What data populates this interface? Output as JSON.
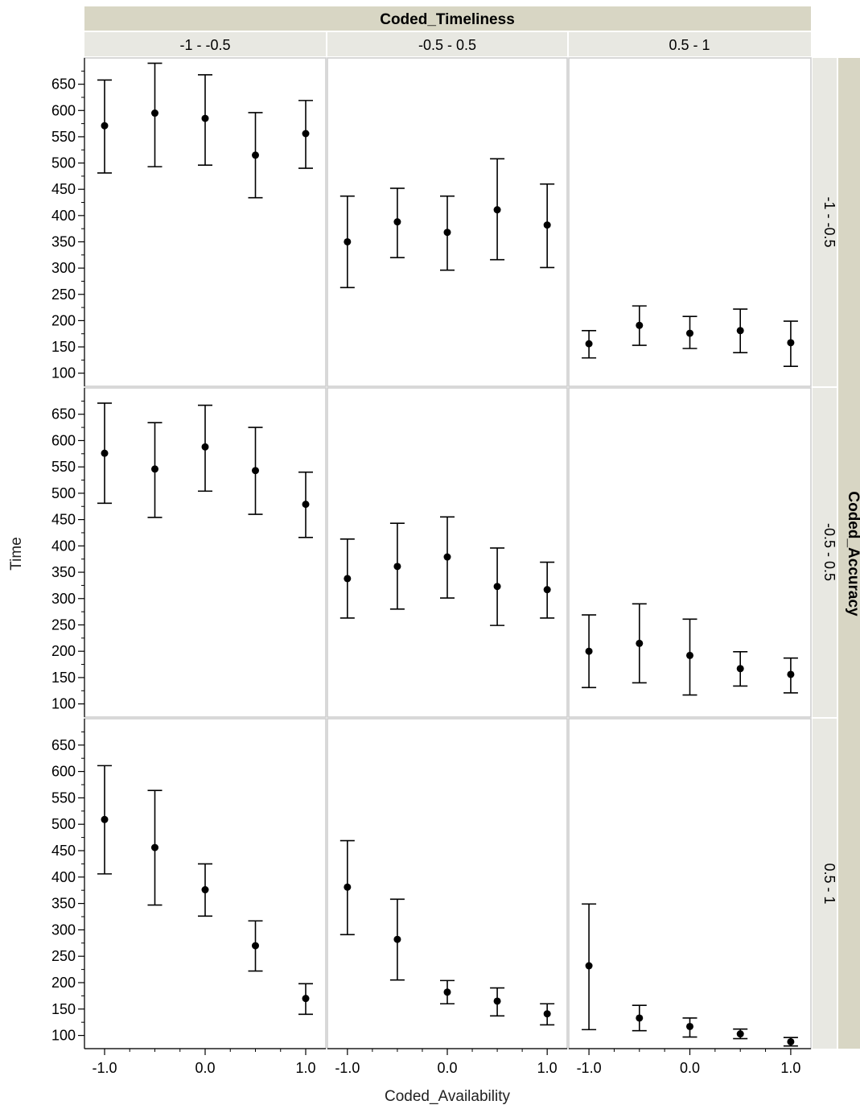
{
  "chart_data": {
    "type": "scatter",
    "style": "point-with-error-bars",
    "facet_col_title": "Coded_Timeliness",
    "facet_row_title": "Coded_Accuracy",
    "col_labels": [
      "-1 - -0.5",
      "-0.5 - 0.5",
      "0.5 - 1"
    ],
    "row_labels": [
      "-1 - -0.5",
      "-0.5 - 0.5",
      "0.5 - 1"
    ],
    "xlabel": "Coded_Availability",
    "ylabel": "Time",
    "x_values": [
      -1.0,
      -0.5,
      0.0,
      0.5,
      1.0
    ],
    "x_tick_labels": [
      "-1.0",
      "0.0",
      "1.0"
    ],
    "x_tick_values": [
      -1.0,
      0.0,
      1.0
    ],
    "xlim": [
      -1.2,
      1.2
    ],
    "ylim": [
      75,
      700
    ],
    "y_tick_labels": [
      "100",
      "150",
      "200",
      "250",
      "300",
      "350",
      "400",
      "450",
      "500",
      "550",
      "600",
      "650"
    ],
    "grid": false,
    "colors": {
      "strip_bg": "#e8e8e2",
      "outer_strip_bg": "#d8d6c4",
      "panel_border": "#cccccc",
      "point": "#000000"
    },
    "panels": [
      {
        "row": 0,
        "col": 0,
        "mean": [
          571,
          595,
          585,
          515,
          556
        ],
        "lower": [
          481,
          493,
          496,
          434,
          490
        ],
        "upper": [
          658,
          690,
          668,
          596,
          619
        ]
      },
      {
        "row": 0,
        "col": 1,
        "mean": [
          350,
          388,
          368,
          411,
          382
        ],
        "lower": [
          263,
          320,
          296,
          316,
          301
        ],
        "upper": [
          437,
          452,
          437,
          508,
          460
        ]
      },
      {
        "row": 0,
        "col": 2,
        "mean": [
          156,
          191,
          176,
          181,
          158
        ],
        "lower": [
          129,
          153,
          147,
          139,
          113
        ],
        "upper": [
          181,
          228,
          208,
          222,
          199
        ]
      },
      {
        "row": 1,
        "col": 0,
        "mean": [
          576,
          546,
          588,
          543,
          479
        ],
        "lower": [
          481,
          454,
          504,
          460,
          416
        ],
        "upper": [
          671,
          634,
          667,
          625,
          540
        ]
      },
      {
        "row": 1,
        "col": 1,
        "mean": [
          338,
          361,
          379,
          323,
          317
        ],
        "lower": [
          263,
          280,
          301,
          249,
          263
        ],
        "upper": [
          413,
          443,
          455,
          396,
          369
        ]
      },
      {
        "row": 1,
        "col": 2,
        "mean": [
          200,
          215,
          192,
          167,
          156
        ],
        "lower": [
          131,
          140,
          117,
          134,
          121
        ],
        "upper": [
          269,
          290,
          261,
          199,
          187
        ]
      },
      {
        "row": 2,
        "col": 0,
        "mean": [
          509,
          456,
          376,
          270,
          170
        ],
        "lower": [
          406,
          347,
          326,
          222,
          140
        ],
        "upper": [
          611,
          564,
          425,
          317,
          198
        ]
      },
      {
        "row": 2,
        "col": 1,
        "mean": [
          381,
          282,
          182,
          165,
          141
        ],
        "lower": [
          291,
          205,
          160,
          137,
          120
        ],
        "upper": [
          469,
          358,
          204,
          190,
          160
        ]
      },
      {
        "row": 2,
        "col": 2,
        "mean": [
          232,
          133,
          117,
          103,
          88
        ],
        "lower": [
          111,
          109,
          97,
          94,
          80
        ],
        "upper": [
          349,
          157,
          133,
          112,
          96
        ]
      }
    ]
  }
}
